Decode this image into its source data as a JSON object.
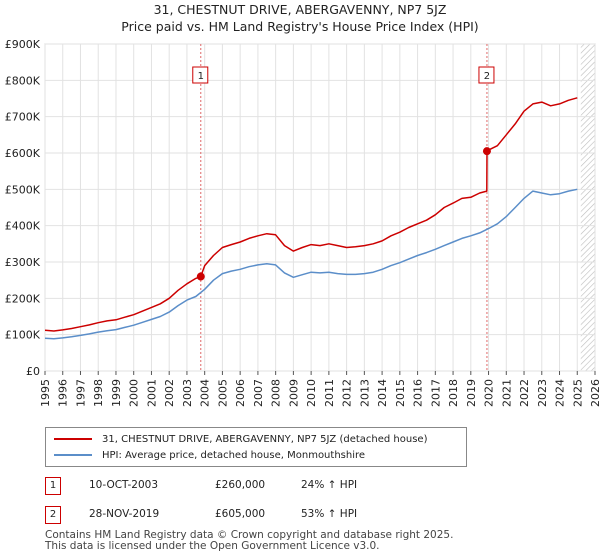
{
  "title": {
    "line1": "31, CHESTNUT DRIVE, ABERGAVENNY, NP7 5JZ",
    "line2": "Price paid vs. HM Land Registry's House Price Index (HPI)"
  },
  "chart_data": {
    "type": "line",
    "title": "31, CHESTNUT DRIVE, ABERGAVENNY, NP7 5JZ - Price paid vs. HM Land Registry's House Price Index (HPI)",
    "xlabel": "",
    "ylabel": "",
    "xlim": [
      1995,
      2026
    ],
    "ylim": [
      0,
      900000
    ],
    "grid": true,
    "y_ticks": [
      {
        "value": 0,
        "label": "£0"
      },
      {
        "value": 100000,
        "label": "£100K"
      },
      {
        "value": 200000,
        "label": "£200K"
      },
      {
        "value": 300000,
        "label": "£300K"
      },
      {
        "value": 400000,
        "label": "£400K"
      },
      {
        "value": 500000,
        "label": "£500K"
      },
      {
        "value": 600000,
        "label": "£600K"
      },
      {
        "value": 700000,
        "label": "£700K"
      },
      {
        "value": 800000,
        "label": "£800K"
      },
      {
        "value": 900000,
        "label": "£900K"
      }
    ],
    "x_ticks": [
      "1995",
      "1996",
      "1997",
      "1998",
      "1999",
      "2000",
      "2001",
      "2002",
      "2003",
      "2004",
      "2005",
      "2006",
      "2007",
      "2008",
      "2009",
      "2010",
      "2011",
      "2012",
      "2013",
      "2014",
      "2015",
      "2016",
      "2017",
      "2018",
      "2019",
      "2020",
      "2021",
      "2022",
      "2023",
      "2024",
      "2025",
      "2026"
    ],
    "series": [
      {
        "name": "31, CHESTNUT DRIVE, ABERGAVENNY, NP7 5JZ (detached house)",
        "color": "#cc0000",
        "x": [
          1995.0,
          1995.5,
          1996.0,
          1996.5,
          1997.0,
          1997.5,
          1998.0,
          1998.5,
          1999.0,
          1999.5,
          2000.0,
          2000.5,
          2001.0,
          2001.5,
          2002.0,
          2002.5,
          2003.0,
          2003.5,
          2003.78,
          2004.0,
          2004.5,
          2005.0,
          2005.5,
          2006.0,
          2006.5,
          2007.0,
          2007.5,
          2008.0,
          2008.5,
          2009.0,
          2009.5,
          2010.0,
          2010.5,
          2011.0,
          2011.5,
          2012.0,
          2012.5,
          2013.0,
          2013.5,
          2014.0,
          2014.5,
          2015.0,
          2015.5,
          2016.0,
          2016.5,
          2017.0,
          2017.5,
          2018.0,
          2018.5,
          2019.0,
          2019.5,
          2019.9,
          2019.91,
          2020.0,
          2020.5,
          2021.0,
          2021.5,
          2022.0,
          2022.5,
          2023.0,
          2023.5,
          2024.0,
          2024.5,
          2025.0
        ],
        "values": [
          112000,
          110000,
          113000,
          117000,
          122000,
          127000,
          133000,
          138000,
          141000,
          148000,
          155000,
          165000,
          175000,
          185000,
          200000,
          222000,
          240000,
          255000,
          260000,
          290000,
          318000,
          340000,
          348000,
          355000,
          365000,
          372000,
          378000,
          375000,
          345000,
          330000,
          340000,
          348000,
          345000,
          350000,
          345000,
          340000,
          342000,
          345000,
          350000,
          358000,
          372000,
          382000,
          395000,
          405000,
          415000,
          430000,
          450000,
          462000,
          475000,
          478000,
          490000,
          495000,
          605000,
          608000,
          620000,
          650000,
          680000,
          715000,
          735000,
          740000,
          730000,
          735000,
          745000,
          752000
        ]
      },
      {
        "name": "HPI: Average price, detached house, Monmouthshire",
        "color": "#5b8ec9",
        "x": [
          1995.0,
          1995.5,
          1996.0,
          1996.5,
          1997.0,
          1997.5,
          1998.0,
          1998.5,
          1999.0,
          1999.5,
          2000.0,
          2000.5,
          2001.0,
          2001.5,
          2002.0,
          2002.5,
          2003.0,
          2003.5,
          2004.0,
          2004.5,
          2005.0,
          2005.5,
          2006.0,
          2006.5,
          2007.0,
          2007.5,
          2008.0,
          2008.5,
          2009.0,
          2009.5,
          2010.0,
          2010.5,
          2011.0,
          2011.5,
          2012.0,
          2012.5,
          2013.0,
          2013.5,
          2014.0,
          2014.5,
          2015.0,
          2015.5,
          2016.0,
          2016.5,
          2017.0,
          2017.5,
          2018.0,
          2018.5,
          2019.0,
          2019.5,
          2020.0,
          2020.5,
          2021.0,
          2021.5,
          2022.0,
          2022.5,
          2023.0,
          2023.5,
          2024.0,
          2024.5,
          2025.0
        ],
        "values": [
          90000,
          89000,
          91000,
          94000,
          98000,
          102000,
          107000,
          111000,
          114000,
          120000,
          126000,
          134000,
          142000,
          150000,
          162000,
          180000,
          195000,
          205000,
          225000,
          250000,
          268000,
          275000,
          280000,
          287000,
          292000,
          295000,
          292000,
          270000,
          258000,
          265000,
          272000,
          270000,
          272000,
          268000,
          266000,
          266000,
          268000,
          272000,
          280000,
          290000,
          298000,
          308000,
          318000,
          326000,
          335000,
          345000,
          355000,
          365000,
          372000,
          380000,
          392000,
          405000,
          425000,
          450000,
          475000,
          495000,
          490000,
          485000,
          488000,
          495000,
          500000
        ]
      }
    ],
    "transactions": [
      {
        "label": "1",
        "x": 2003.78,
        "value": 260000
      },
      {
        "label": "2",
        "x": 2019.91,
        "value": 605000
      }
    ],
    "forecast_from_x": 2025.2
  },
  "legend": {
    "items": [
      {
        "label": "31, CHESTNUT DRIVE, ABERGAVENNY, NP7 5JZ (detached house)",
        "color": "#cc0000"
      },
      {
        "label": "HPI: Average price, detached house, Monmouthshire",
        "color": "#5b8ec9"
      }
    ]
  },
  "annotations": [
    {
      "num": "1",
      "date": "10-OCT-2003",
      "price": "£260,000",
      "hpi": "24% ↑ HPI"
    },
    {
      "num": "2",
      "date": "28-NOV-2019",
      "price": "£605,000",
      "hpi": "53% ↑ HPI"
    }
  ],
  "footer": {
    "line1": "Contains HM Land Registry data © Crown copyright and database right 2025.",
    "line2": "This data is licensed under the Open Government Licence v3.0."
  }
}
